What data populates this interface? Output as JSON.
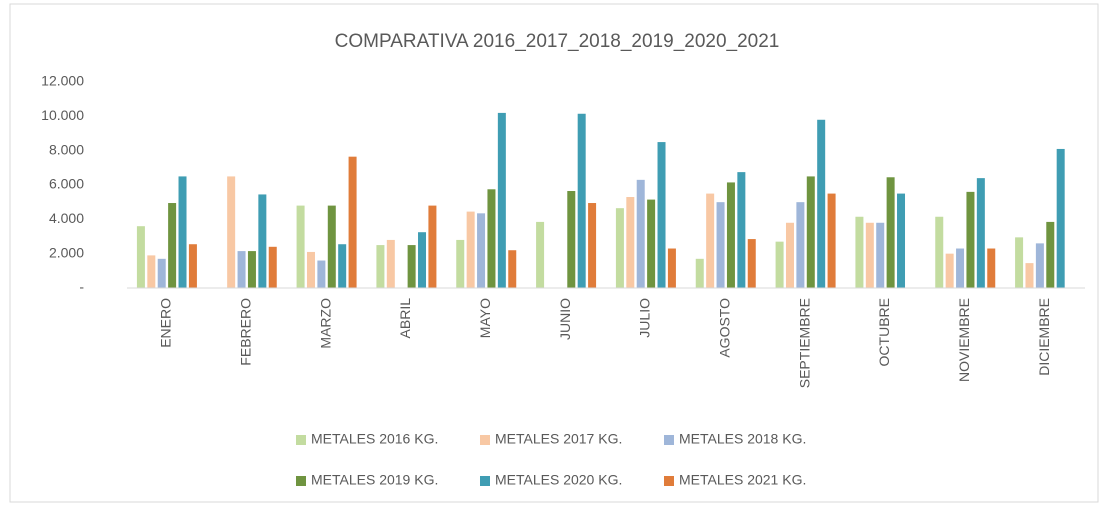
{
  "chart_data": {
    "type": "bar",
    "title": "COMPARATIVA 2016_2017_2018_2019_2020_2021",
    "categories": [
      "ENERO",
      "FEBRERO",
      "MARZO",
      "ABRIL",
      "MAYO",
      "JUNIO",
      "JULIO",
      "AGOSTO",
      "SEPTIEMBRE",
      "OCTUBRE",
      "NOVIEMBRE",
      "DICIEMBRE"
    ],
    "series": [
      {
        "name": "METALES 2016 KG.",
        "color": "#c3dca0",
        "values": [
          3600,
          null,
          4800,
          2500,
          2800,
          3850,
          4650,
          1700,
          2700,
          4150,
          4150,
          2950
        ]
      },
      {
        "name": "METALES 2017 KG.",
        "color": "#f8c8a4",
        "values": [
          1900,
          6500,
          2100,
          2800,
          4450,
          null,
          5300,
          5500,
          3800,
          3800,
          2000,
          1450
        ]
      },
      {
        "name": "METALES 2018 KG.",
        "color": "#9fb6d9",
        "values": [
          1700,
          2150,
          1600,
          null,
          4350,
          null,
          6300,
          5000,
          5000,
          3800,
          2300,
          2600
        ]
      },
      {
        "name": "METALES 2019 KG.",
        "color": "#6f9440",
        "values": [
          4950,
          2150,
          4800,
          2500,
          5750,
          5650,
          5150,
          6150,
          6500,
          6450,
          5600,
          3850
        ]
      },
      {
        "name": "METALES 2020 KG.",
        "color": "#3f9db3",
        "values": [
          6500,
          5450,
          2550,
          3250,
          10200,
          10150,
          8500,
          6750,
          9800,
          5500,
          6400,
          8100
        ]
      },
      {
        "name": "METALES 2021 KG.",
        "color": "#e07c3a",
        "values": [
          2550,
          2400,
          7650,
          4800,
          2200,
          4950,
          2300,
          2850,
          5500,
          null,
          2300,
          null
        ]
      }
    ],
    "ylim": [
      0,
      12000
    ],
    "yticks": [
      {
        "value": 0,
        "label": "-"
      },
      {
        "value": 2000,
        "label": "2.000"
      },
      {
        "value": 4000,
        "label": "4.000"
      },
      {
        "value": 6000,
        "label": "6.000"
      },
      {
        "value": 8000,
        "label": "8.000"
      },
      {
        "value": 10000,
        "label": "10.000"
      },
      {
        "value": 12000,
        "label": "12.000"
      }
    ],
    "grid": false
  }
}
